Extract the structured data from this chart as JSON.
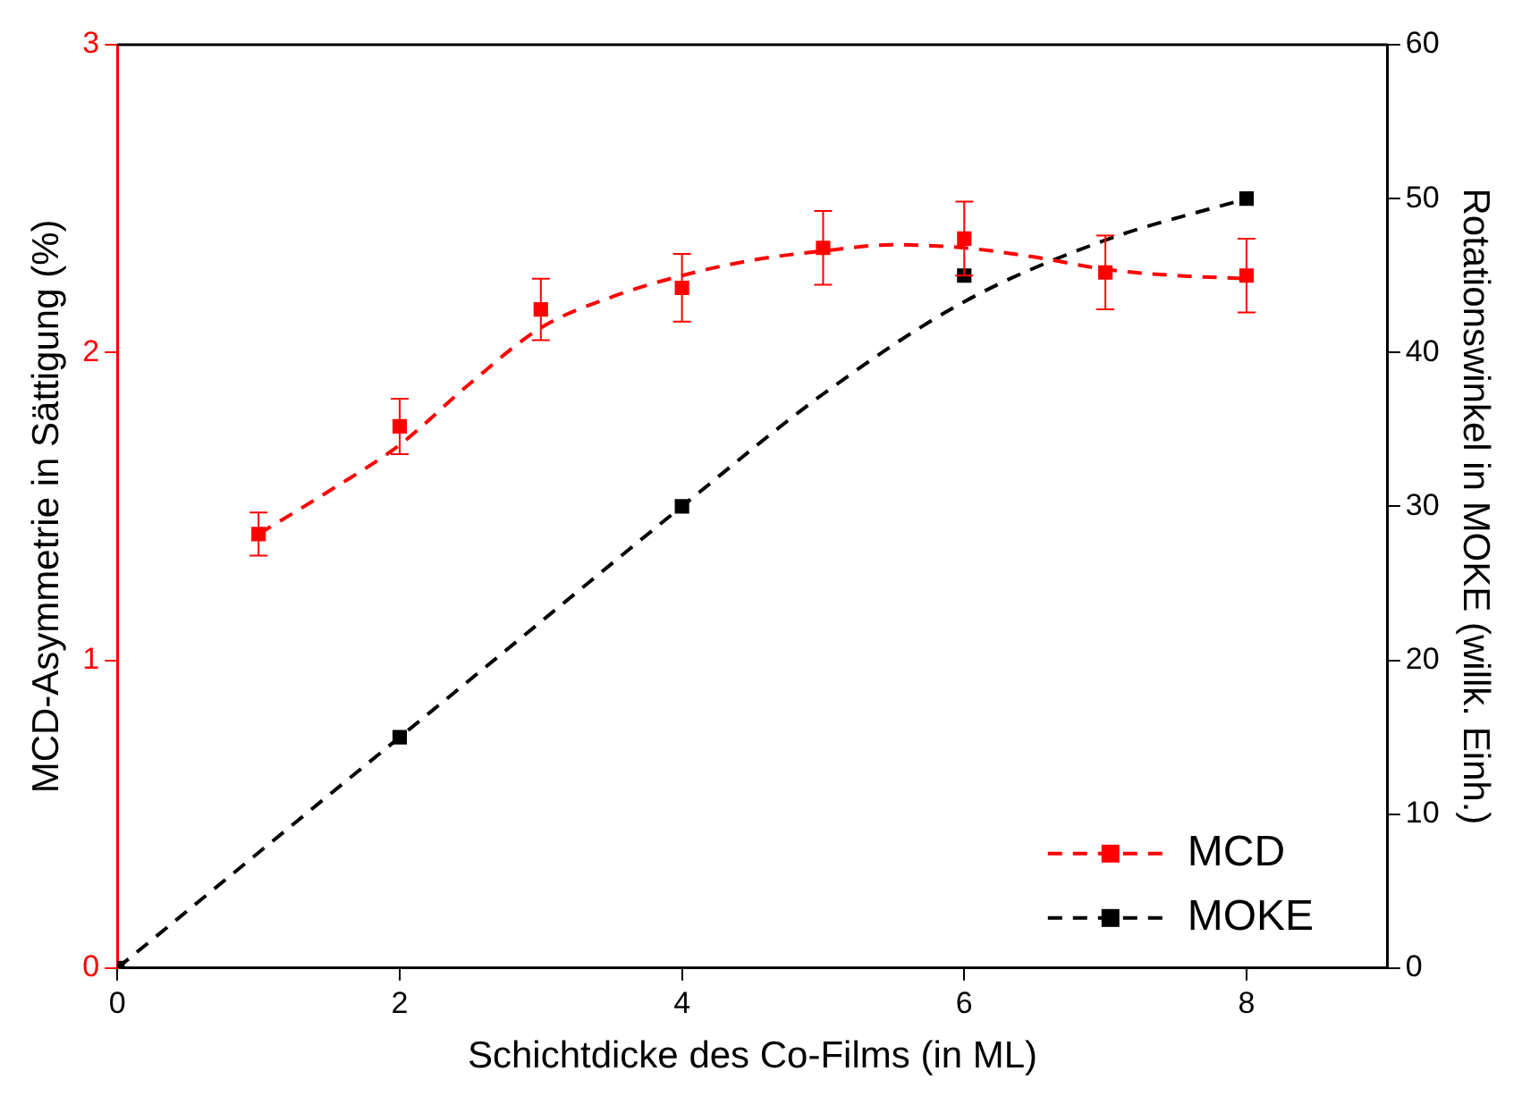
{
  "chart_data": {
    "type": "scatter",
    "xlabel": "Schichtdicke des Co-Films (in ML)",
    "ylabel": "MCD-Asymmetrie in Sättigung (%)",
    "y2label": "Rotationswinkel in MOKE (willk. Einh.)",
    "xlim": [
      0,
      9
    ],
    "xticks": [
      0,
      2,
      4,
      6,
      8
    ],
    "ylim": [
      0,
      3
    ],
    "yticks": [
      0,
      1,
      2,
      3
    ],
    "y2lim": [
      0,
      60
    ],
    "y2ticks": [
      0,
      10,
      20,
      30,
      40,
      50,
      60
    ],
    "grid": false,
    "legend": "bottom right",
    "marker": "square",
    "line_style": "dashed",
    "series": [
      {
        "name": "MCD",
        "color": "#ff0000",
        "x": [
          1,
          2,
          3,
          4,
          5,
          6,
          7,
          8
        ],
        "values": [
          1.41,
          1.76,
          2.14,
          2.21,
          2.34,
          2.37,
          2.26,
          2.25
        ],
        "errors": [
          0.07,
          0.09,
          0.1,
          0.11,
          0.12,
          0.12,
          0.12,
          0.12
        ]
      },
      {
        "name": "MOKE",
        "color": "#000000",
        "axis": "y2",
        "x": [
          0,
          2,
          4,
          6,
          8
        ],
        "values": [
          0,
          15,
          30,
          45,
          50
        ]
      },
      {
        "type": "line",
        "marker": "none",
        "color": "#ff0000",
        "x": [
          1,
          1.5,
          2,
          2.5,
          3,
          3.5,
          4,
          4.5,
          5,
          5.5,
          6,
          6.5,
          7,
          7.5,
          8
        ],
        "values": [
          1.41,
          1.55,
          1.7,
          1.9,
          2.08,
          2.18,
          2.25,
          2.3,
          2.33,
          2.35,
          2.34,
          2.31,
          2.27,
          2.25,
          2.24
        ]
      },
      {
        "type": "line",
        "marker": "none",
        "color": "#000000",
        "axis": "y2",
        "x": [
          0,
          1,
          2,
          3,
          4,
          5,
          6,
          7,
          8
        ],
        "values": [
          0,
          7.5,
          15,
          22.5,
          30,
          37.3,
          43.3,
          47.3,
          50
        ]
      }
    ]
  }
}
